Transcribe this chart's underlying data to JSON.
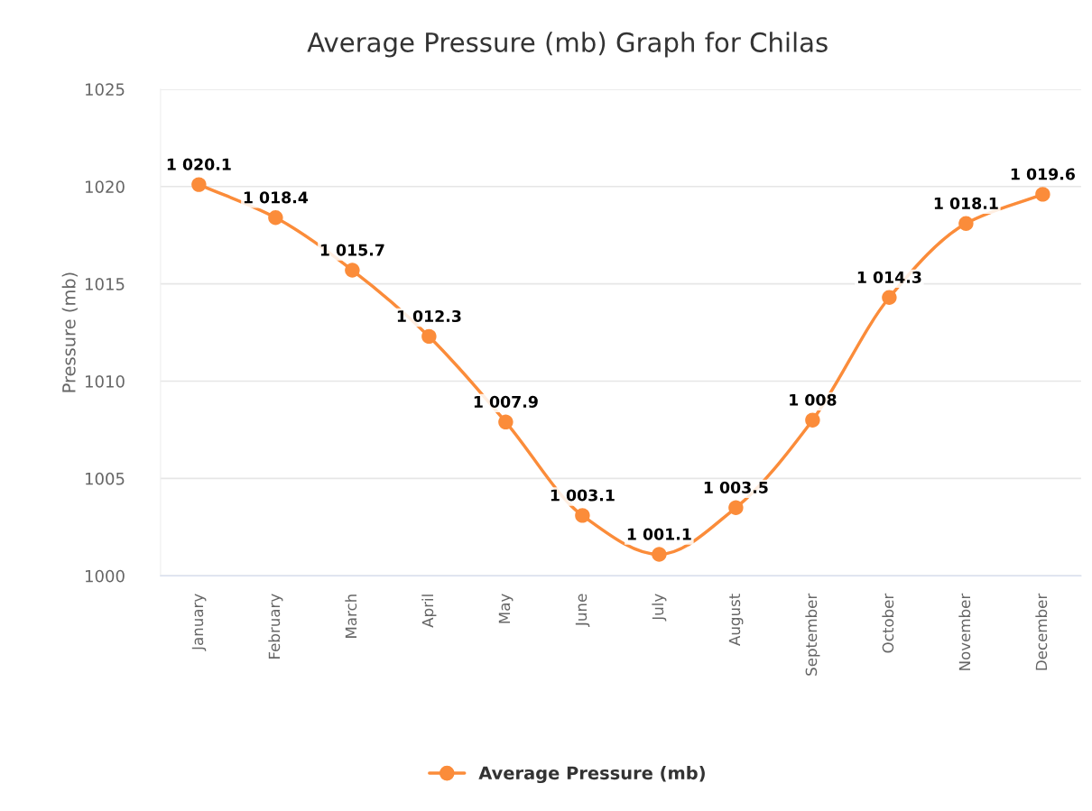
{
  "chart_data": {
    "type": "line",
    "title": "Average Pressure (mb) Graph for Chilas",
    "ylabel": "Pressure (mb)",
    "categories": [
      "January",
      "February",
      "March",
      "April",
      "May",
      "June",
      "July",
      "August",
      "September",
      "October",
      "November",
      "December"
    ],
    "series": [
      {
        "name": "Average Pressure (mb)",
        "color": "#fb8c3a",
        "values": [
          1020.1,
          1018.4,
          1015.7,
          1012.3,
          1007.9,
          1003.1,
          1001.1,
          1003.5,
          1008,
          1014.3,
          1018.1,
          1019.6
        ],
        "value_labels": [
          "1 020.1",
          "1 018.4",
          "1 015.7",
          "1 012.3",
          "1 007.9",
          "1 003.1",
          "1 001.1",
          "1 003.5",
          "1 008",
          "1 014.3",
          "1 018.1",
          "1 019.6"
        ]
      }
    ],
    "ylim": [
      1000,
      1025
    ],
    "yticks": [
      1000,
      1005,
      1010,
      1015,
      1020,
      1025
    ],
    "grid": "y",
    "legend": "bottom",
    "marker": "circle",
    "line_style": "solid"
  }
}
